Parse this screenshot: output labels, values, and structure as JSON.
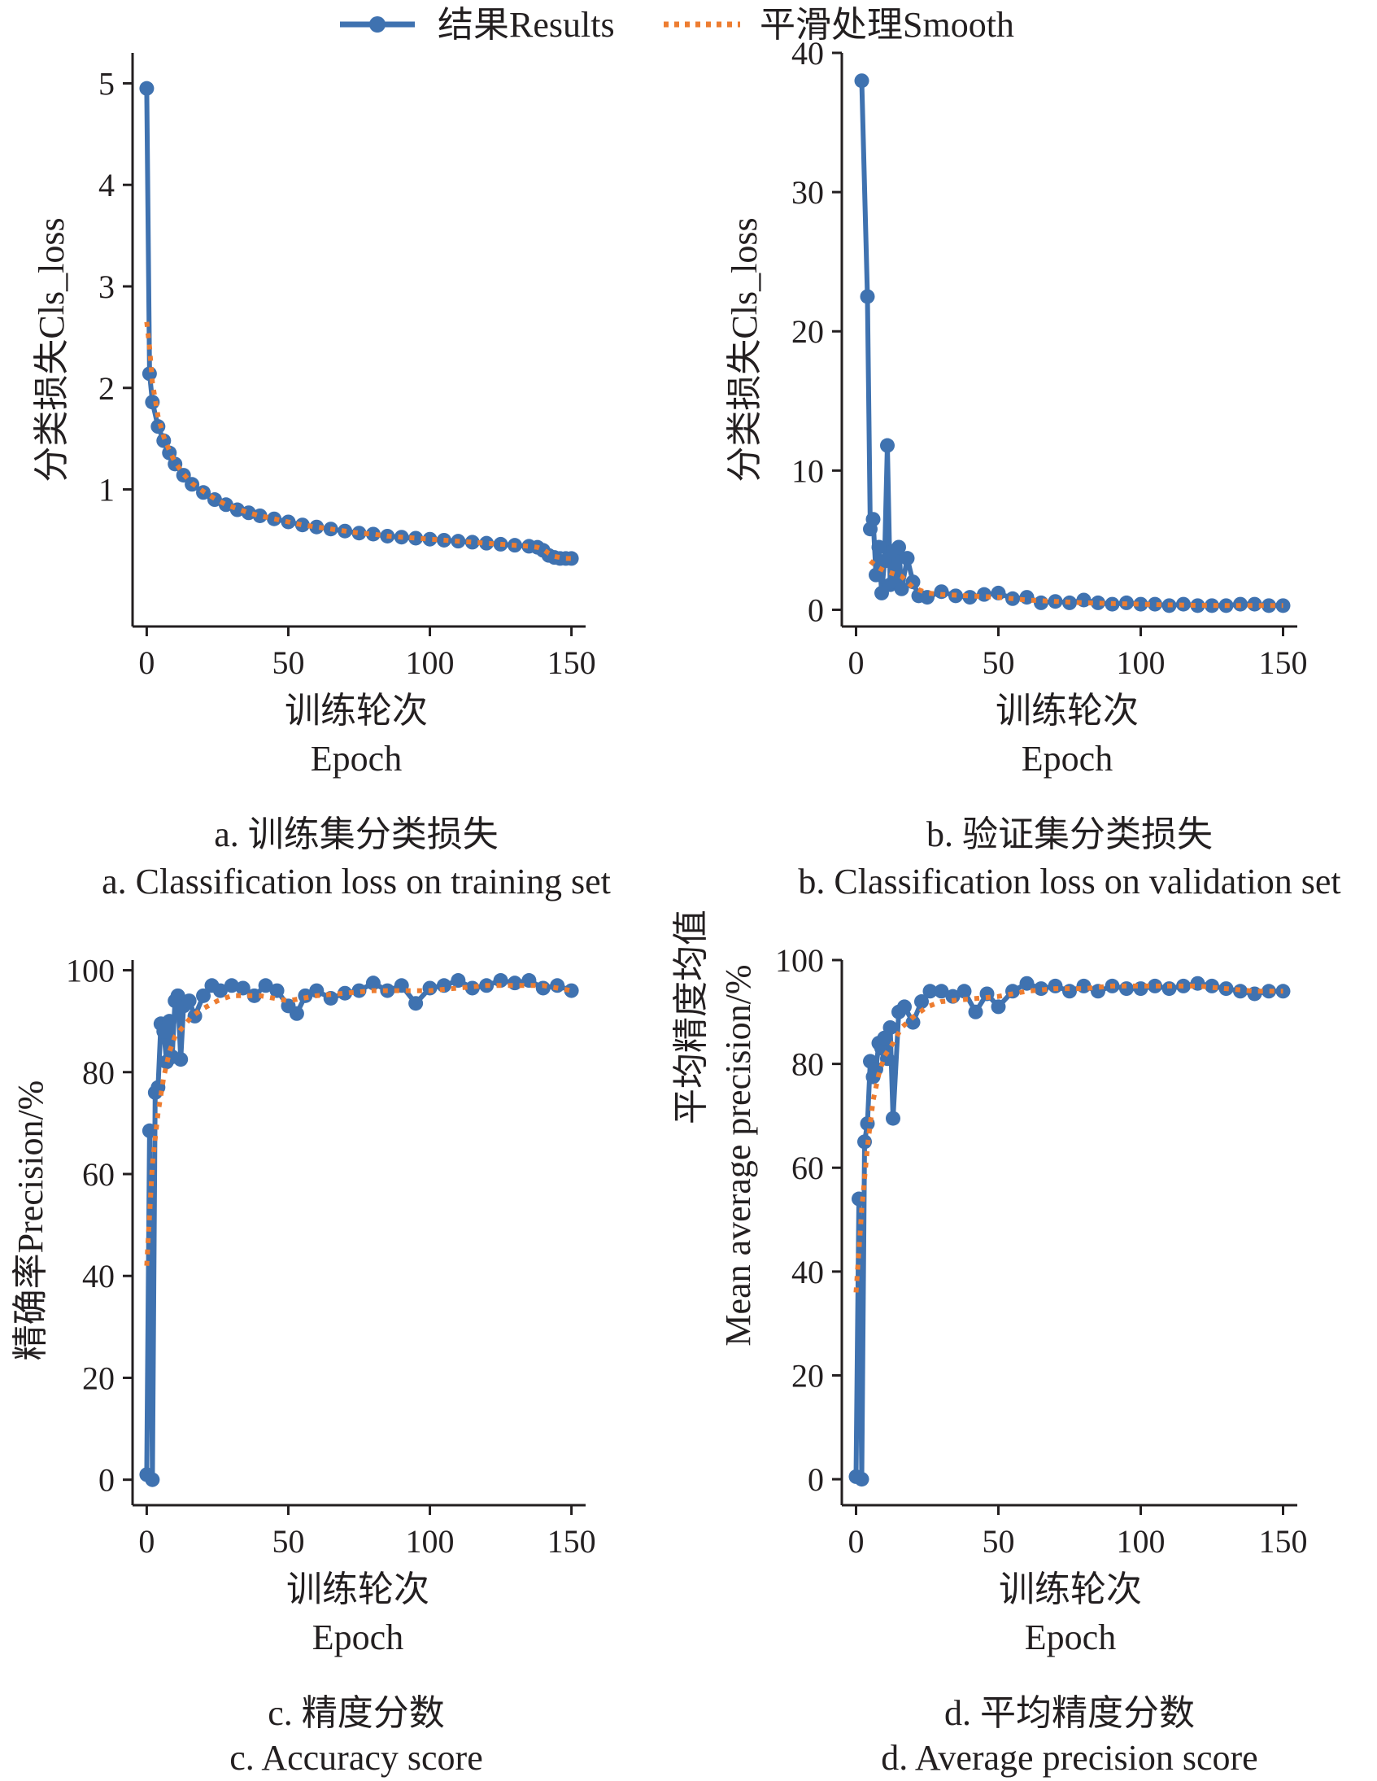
{
  "legend": {
    "results_label": "结果Results",
    "smooth_label": "平滑处理Smooth"
  },
  "colors": {
    "results": "#3f72b0",
    "smooth": "#ed7d31",
    "axis": "#231f20"
  },
  "chart_data": [
    {
      "id": "a",
      "type": "line",
      "ylabel": "分类损失Cls_loss",
      "xlabel_cn": "训练轮次",
      "xlabel_en": "Epoch",
      "caption_cn": "a. 训练集分类损失",
      "caption_en": "a. Classification loss on training set",
      "xlim": [
        -5,
        155
      ],
      "ylim": [
        -0.35,
        5.3
      ],
      "xticks": [
        0,
        50,
        100,
        150
      ],
      "yticks": [
        1,
        2,
        3,
        4,
        5
      ],
      "grid": false,
      "series": [
        {
          "name": "结果Results",
          "x": [
            0,
            1,
            2,
            4,
            6,
            8,
            10,
            13,
            16,
            20,
            24,
            28,
            32,
            36,
            40,
            45,
            50,
            55,
            60,
            65,
            70,
            75,
            80,
            85,
            90,
            95,
            100,
            105,
            110,
            115,
            120,
            125,
            130,
            135,
            138,
            140,
            142,
            144,
            146,
            148,
            150
          ],
          "y": [
            4.95,
            2.14,
            1.86,
            1.62,
            1.48,
            1.36,
            1.25,
            1.14,
            1.05,
            0.97,
            0.9,
            0.85,
            0.8,
            0.77,
            0.74,
            0.71,
            0.68,
            0.65,
            0.63,
            0.61,
            0.59,
            0.57,
            0.56,
            0.54,
            0.53,
            0.52,
            0.51,
            0.5,
            0.49,
            0.48,
            0.47,
            0.46,
            0.45,
            0.44,
            0.43,
            0.4,
            0.35,
            0.33,
            0.32,
            0.32,
            0.32
          ]
        },
        {
          "name": "平滑处理Smooth",
          "x": [
            0,
            1,
            2,
            4,
            6,
            8,
            10,
            13,
            16,
            20,
            24,
            28,
            32,
            36,
            40,
            45,
            50,
            55,
            60,
            65,
            70,
            75,
            80,
            85,
            90,
            95,
            100,
            105,
            110,
            115,
            120,
            125,
            130,
            135,
            138,
            140,
            142,
            144,
            146,
            148,
            150
          ],
          "y": [
            2.65,
            2.4,
            2.05,
            1.72,
            1.52,
            1.38,
            1.27,
            1.15,
            1.06,
            0.98,
            0.91,
            0.85,
            0.81,
            0.77,
            0.74,
            0.71,
            0.68,
            0.65,
            0.63,
            0.61,
            0.59,
            0.57,
            0.56,
            0.54,
            0.53,
            0.52,
            0.51,
            0.5,
            0.49,
            0.48,
            0.47,
            0.46,
            0.45,
            0.44,
            0.43,
            0.41,
            0.37,
            0.34,
            0.33,
            0.32,
            0.32
          ]
        }
      ]
    },
    {
      "id": "b",
      "type": "line",
      "ylabel": "分类损失Cls_loss",
      "xlabel_cn": "训练轮次",
      "xlabel_en": "Epoch",
      "caption_cn": "b. 验证集分类损失",
      "caption_en": "b. Classification loss on validation set",
      "xlim": [
        -5,
        155
      ],
      "ylim": [
        -1.2,
        40
      ],
      "xticks": [
        0,
        50,
        100,
        150
      ],
      "yticks": [
        0,
        10,
        20,
        30,
        40
      ],
      "grid": false,
      "series": [
        {
          "name": "结果Results",
          "x": [
            2,
            4,
            5,
            6,
            7,
            8,
            9,
            10,
            11,
            12,
            13,
            14,
            15,
            16,
            18,
            20,
            22,
            25,
            30,
            35,
            40,
            45,
            50,
            55,
            60,
            65,
            70,
            75,
            80,
            85,
            90,
            95,
            100,
            105,
            110,
            115,
            120,
            125,
            130,
            135,
            140,
            145,
            150
          ],
          "y": [
            38,
            22.5,
            5.8,
            6.5,
            2.5,
            4.5,
            1.2,
            3.5,
            11.8,
            1.8,
            4.2,
            2.0,
            4.5,
            1.5,
            3.7,
            2.0,
            1.0,
            0.9,
            1.3,
            1.0,
            0.9,
            1.1,
            1.2,
            0.8,
            0.9,
            0.5,
            0.6,
            0.5,
            0.7,
            0.5,
            0.4,
            0.5,
            0.4,
            0.4,
            0.3,
            0.4,
            0.3,
            0.3,
            0.3,
            0.4,
            0.4,
            0.3,
            0.3
          ]
        },
        {
          "name": "平滑处理Smooth",
          "x": [
            5,
            8,
            10,
            13,
            16,
            20,
            25,
            30,
            40,
            50,
            60,
            70,
            80,
            90,
            100,
            110,
            120,
            130,
            140,
            150
          ],
          "y": [
            3.5,
            3.0,
            2.8,
            2.6,
            2.4,
            1.6,
            1.2,
            1.1,
            1.0,
            0.9,
            0.7,
            0.6,
            0.5,
            0.45,
            0.4,
            0.35,
            0.32,
            0.3,
            0.3,
            0.3
          ]
        }
      ]
    },
    {
      "id": "c",
      "type": "line",
      "ylabel": "精确率Precision/%",
      "xlabel_cn": "训练轮次",
      "xlabel_en": "Epoch",
      "caption_cn": "c. 精度分数",
      "caption_en": "c. Accuracy score",
      "xlim": [
        -5,
        155
      ],
      "ylim": [
        -5,
        102
      ],
      "xticks": [
        0,
        50,
        100,
        150
      ],
      "yticks": [
        0,
        20,
        40,
        60,
        80,
        100
      ],
      "grid": false,
      "series": [
        {
          "name": "结果Results",
          "x": [
            0,
            1,
            2,
            3,
            4,
            5,
            6,
            7,
            8,
            9,
            10,
            11,
            12,
            13,
            15,
            17,
            20,
            23,
            26,
            30,
            34,
            38,
            42,
            46,
            50,
            53,
            56,
            60,
            65,
            70,
            75,
            80,
            85,
            90,
            95,
            100,
            105,
            110,
            115,
            120,
            125,
            130,
            135,
            140,
            145,
            150
          ],
          "y": [
            1,
            68.5,
            0,
            76,
            77,
            89.5,
            88,
            82,
            90,
            83,
            94,
            95,
            82.5,
            93,
            94,
            91,
            95,
            97,
            96,
            97,
            96.5,
            95,
            97,
            96,
            93,
            91.5,
            95,
            96,
            94.5,
            95.5,
            96,
            97.5,
            96,
            97,
            93.5,
            96.5,
            97,
            98,
            96.5,
            97,
            98,
            97.5,
            98,
            96.5,
            97,
            96
          ]
        },
        {
          "name": "平滑处理Smooth",
          "x": [
            0,
            2,
            4,
            6,
            8,
            10,
            13,
            16,
            20,
            25,
            30,
            40,
            50,
            60,
            70,
            80,
            90,
            100,
            110,
            120,
            130,
            140,
            150
          ],
          "y": [
            42,
            62,
            72,
            79,
            84,
            87,
            89,
            91,
            92.5,
            94,
            95,
            95,
            94,
            95,
            95.5,
            96,
            96,
            96,
            96.5,
            97,
            97,
            97,
            96
          ]
        }
      ]
    },
    {
      "id": "d",
      "type": "line",
      "ylabel": "平均精度均值 Mean average precision/%",
      "ylabel_line1": "平均精度均值",
      "ylabel_line2": "Mean average precision/%",
      "xlabel_cn": "训练轮次",
      "xlabel_en": "Epoch",
      "caption_cn": "d. 平均精度分数",
      "caption_en": "d. Average precision score",
      "xlim": [
        -5,
        155
      ],
      "ylim": [
        -5,
        100
      ],
      "xticks": [
        0,
        50,
        100,
        150
      ],
      "yticks": [
        0,
        20,
        40,
        60,
        80,
        100
      ],
      "grid": false,
      "series": [
        {
          "name": "结果Results",
          "x": [
            0,
            1,
            2,
            3,
            4,
            5,
            6,
            7,
            8,
            9,
            10,
            11,
            12,
            13,
            15,
            17,
            20,
            23,
            26,
            30,
            34,
            38,
            42,
            46,
            50,
            55,
            60,
            65,
            70,
            75,
            80,
            85,
            90,
            95,
            100,
            105,
            110,
            115,
            120,
            125,
            130,
            135,
            140,
            145,
            150
          ],
          "y": [
            0.5,
            54,
            0,
            65,
            68.5,
            80.5,
            77.5,
            79,
            84,
            83,
            85,
            81,
            87,
            69.5,
            90,
            91,
            88,
            92,
            94,
            94,
            93,
            94,
            90,
            93.5,
            91,
            94,
            95.5,
            94.5,
            95,
            94,
            95,
            94,
            95,
            94.5,
            94.5,
            95,
            94.5,
            95,
            95.5,
            95,
            94.5,
            94,
            93.5,
            94,
            94
          ]
        },
        {
          "name": "平滑处理Smooth",
          "x": [
            0,
            2,
            4,
            6,
            8,
            10,
            13,
            16,
            20,
            25,
            30,
            40,
            50,
            60,
            70,
            80,
            90,
            100,
            110,
            120,
            130,
            140,
            150
          ],
          "y": [
            36,
            52,
            64,
            73,
            78,
            81.5,
            84,
            87,
            89,
            91,
            92,
            92.5,
            93,
            94,
            94.5,
            94.5,
            95,
            95,
            95,
            95,
            94.5,
            94,
            94
          ]
        }
      ]
    }
  ]
}
